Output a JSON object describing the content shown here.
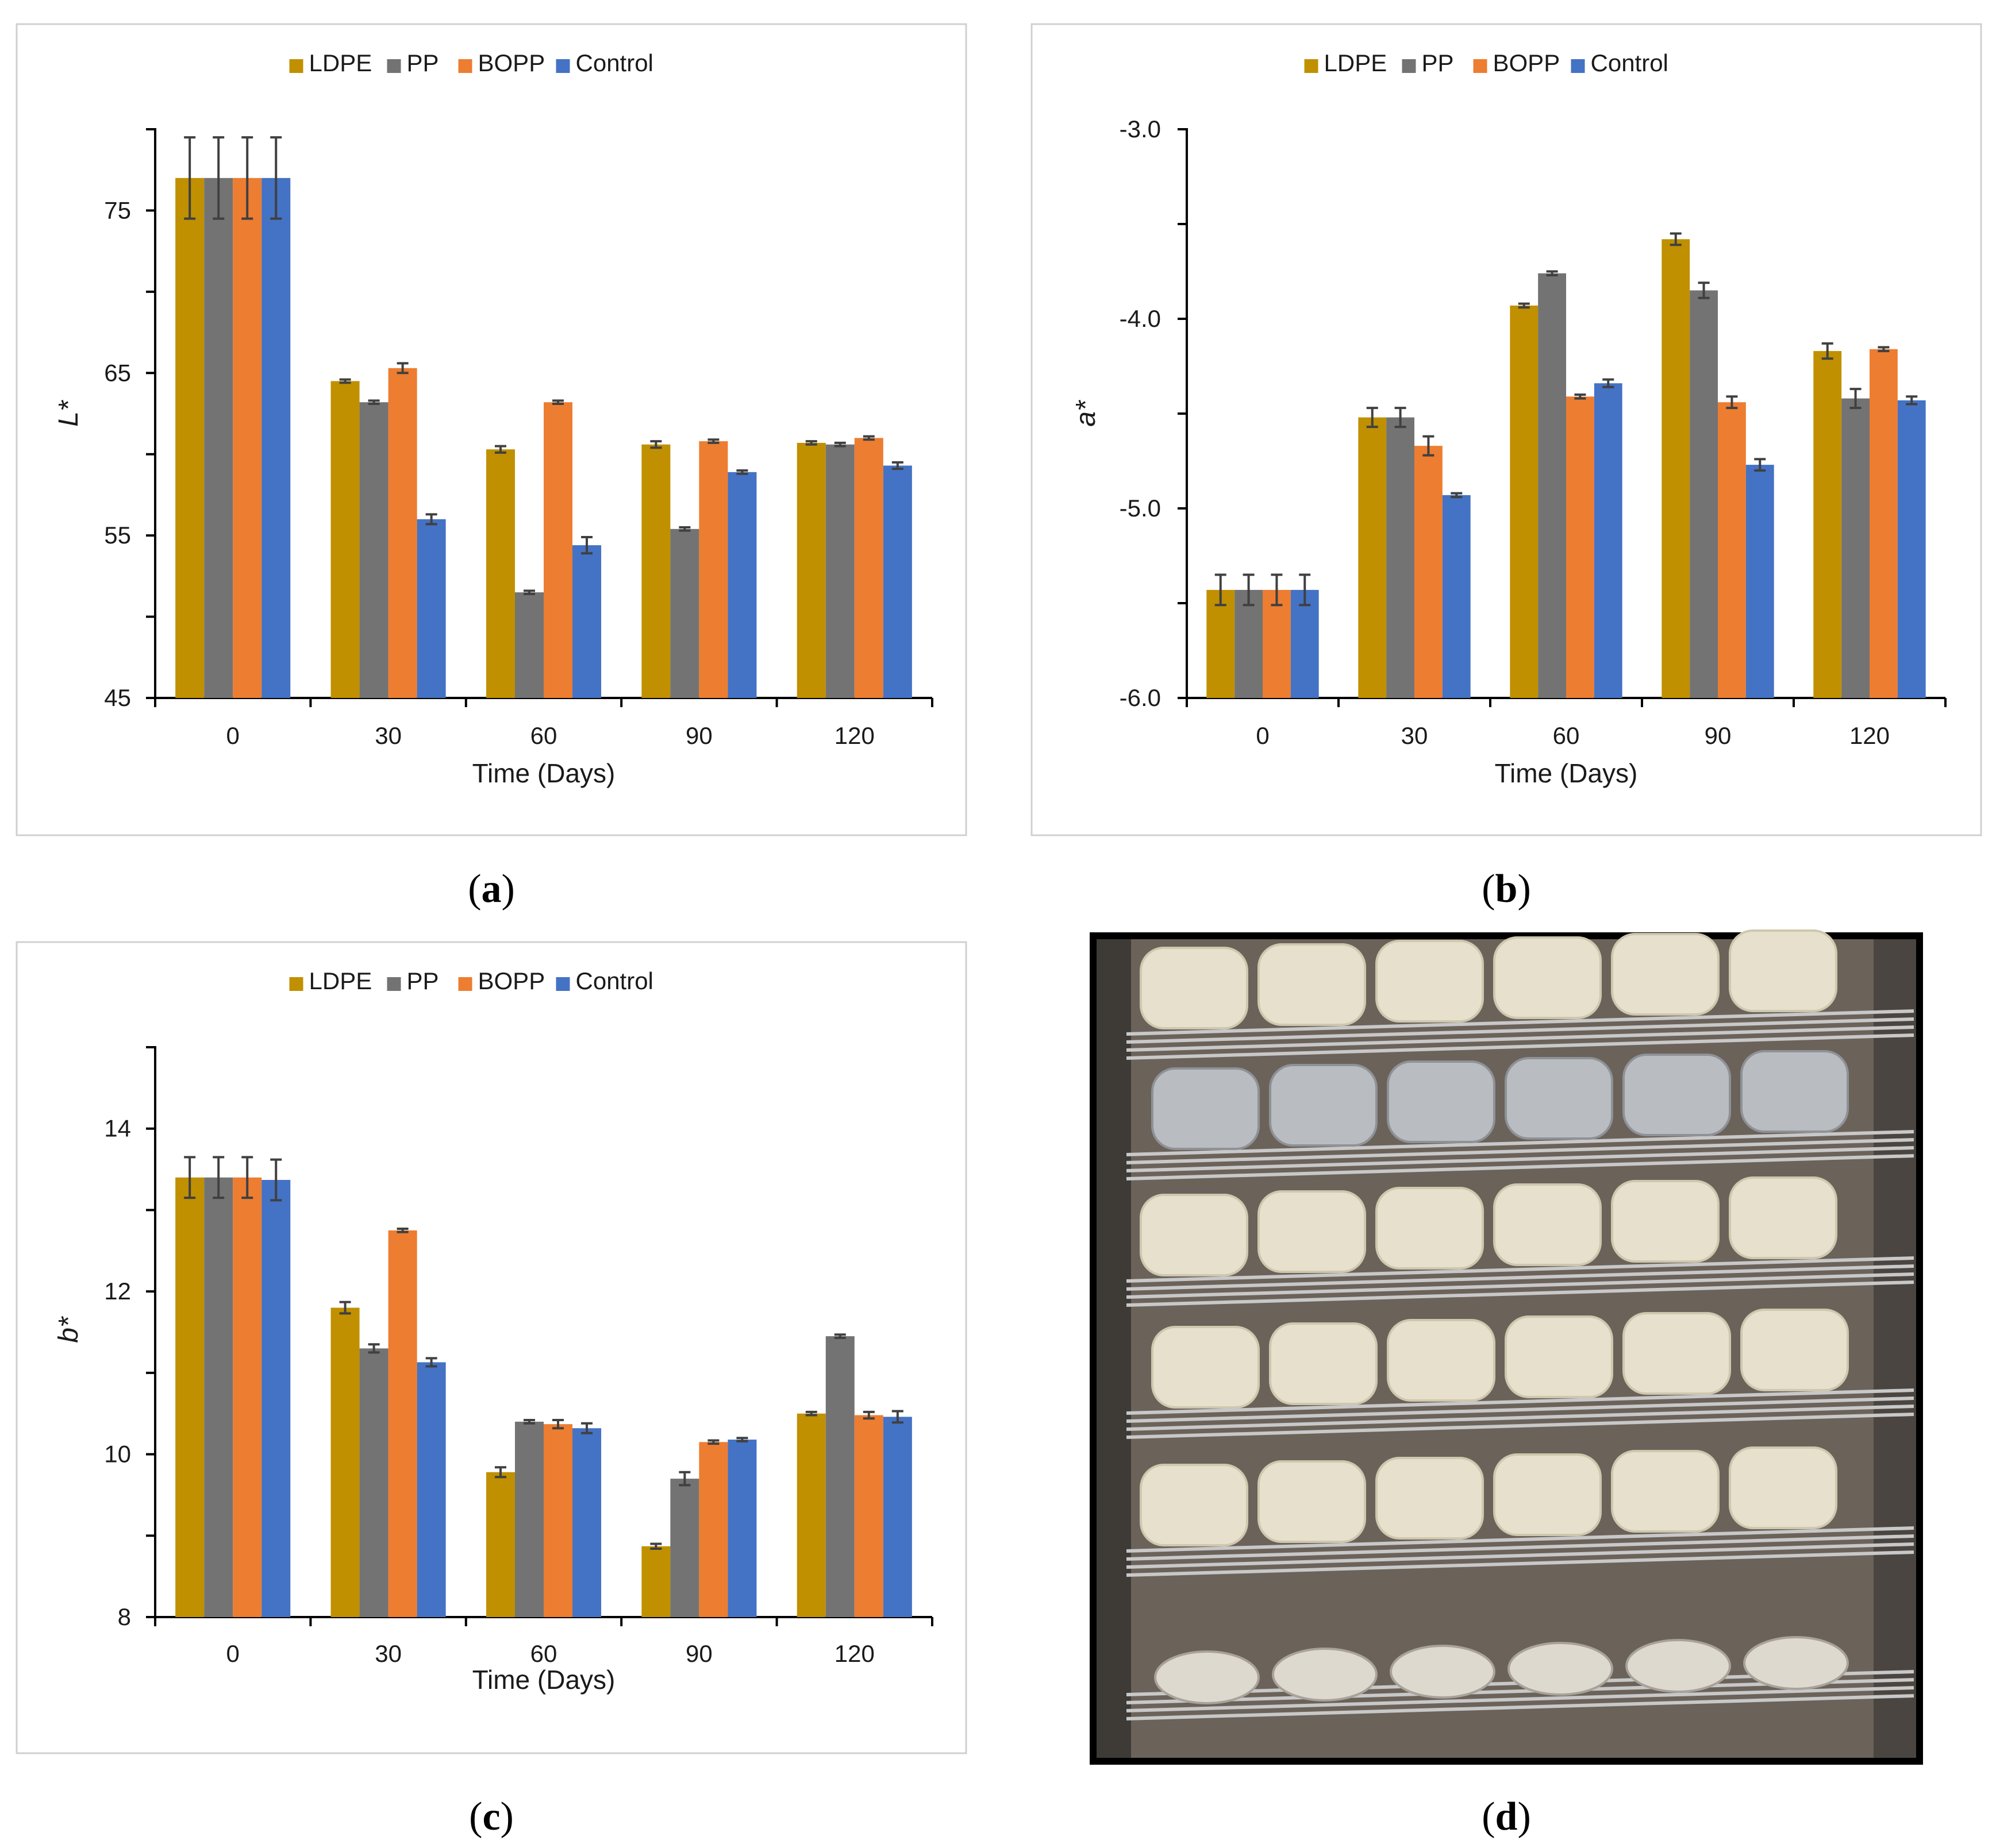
{
  "colors": {
    "LDPE": "#c09000",
    "PP": "#737373",
    "BOPP": "#ed7d31",
    "Control": "#4472c4"
  },
  "captions": {
    "a": [
      "(",
      "a",
      ")"
    ],
    "b": [
      "(",
      "b",
      ")"
    ],
    "c": [
      "(",
      "c",
      ")"
    ],
    "d": [
      "(",
      "d",
      ")"
    ]
  },
  "photo": {
    "description_icon": "photo-icon"
  },
  "chart_data": [
    {
      "id": "a",
      "type": "bar",
      "ylabel": "L*",
      "xlabel": "Time (Days)",
      "categories": [
        "0",
        "30",
        "60",
        "90",
        "120"
      ],
      "ylim": [
        45,
        80
      ],
      "yticks": [
        45,
        55,
        65,
        75
      ],
      "ytick_labels": [
        "45",
        "55",
        "65",
        "75"
      ],
      "legend": [
        "LDPE",
        "PP",
        "BOPP",
        "Control"
      ],
      "series": [
        {
          "name": "LDPE",
          "values": [
            77.0,
            64.5,
            60.3,
            60.6,
            60.7
          ],
          "errors": [
            2.5,
            0.1,
            0.2,
            0.2,
            0.1
          ]
        },
        {
          "name": "PP",
          "values": [
            77.0,
            63.2,
            51.5,
            55.4,
            60.6
          ],
          "errors": [
            2.5,
            0.1,
            0.1,
            0.1,
            0.1
          ]
        },
        {
          "name": "BOPP",
          "values": [
            77.0,
            65.3,
            63.2,
            60.8,
            61.0
          ],
          "errors": [
            2.5,
            0.3,
            0.1,
            0.1,
            0.1
          ]
        },
        {
          "name": "Control",
          "values": [
            77.0,
            56.0,
            54.4,
            58.9,
            59.3
          ],
          "errors": [
            2.5,
            0.3,
            0.5,
            0.1,
            0.2
          ]
        }
      ]
    },
    {
      "id": "b",
      "type": "bar",
      "ylabel": "a*",
      "xlabel": "Time (Days)",
      "categories": [
        "0",
        "30",
        "60",
        "90",
        "120"
      ],
      "ylim": [
        -6.0,
        -3.0
      ],
      "yticks": [
        -6.0,
        -5.0,
        -4.0,
        -3.0
      ],
      "ytick_labels": [
        "-6.0",
        "-5.0",
        "-4.0",
        "-3.0"
      ],
      "legend": [
        "LDPE",
        "PP",
        "BOPP",
        "Control"
      ],
      "series": [
        {
          "name": "LDPE",
          "values": [
            -5.43,
            -4.52,
            -3.93,
            -3.58,
            -4.17
          ],
          "errors": [
            0.08,
            0.05,
            0.01,
            0.03,
            0.04
          ]
        },
        {
          "name": "PP",
          "values": [
            -5.43,
            -4.52,
            -3.76,
            -3.85,
            -4.42
          ],
          "errors": [
            0.08,
            0.05,
            0.01,
            0.04,
            0.05
          ]
        },
        {
          "name": "BOPP",
          "values": [
            -5.43,
            -4.67,
            -4.41,
            -4.44,
            -4.16
          ],
          "errors": [
            0.08,
            0.05,
            0.01,
            0.03,
            0.01
          ]
        },
        {
          "name": "Control",
          "values": [
            -5.43,
            -4.93,
            -4.34,
            -4.77,
            -4.43
          ],
          "errors": [
            0.08,
            0.01,
            0.02,
            0.03,
            0.02
          ]
        }
      ]
    },
    {
      "id": "c",
      "type": "bar",
      "ylabel": "b*",
      "xlabel": "Time (Days)",
      "categories": [
        "0",
        "30",
        "60",
        "90",
        "120"
      ],
      "ylim": [
        8,
        15
      ],
      "yticks": [
        8,
        10,
        12,
        14
      ],
      "ytick_labels": [
        "8",
        "10",
        "12",
        "14"
      ],
      "legend": [
        "LDPE",
        "PP",
        "BOPP",
        "Control"
      ],
      "series": [
        {
          "name": "LDPE",
          "values": [
            13.4,
            11.8,
            9.78,
            8.87,
            10.5
          ],
          "errors": [
            0.25,
            0.07,
            0.06,
            0.03,
            0.02
          ]
        },
        {
          "name": "PP",
          "values": [
            13.4,
            11.3,
            10.4,
            9.7,
            11.45
          ],
          "errors": [
            0.25,
            0.05,
            0.02,
            0.08,
            0.02
          ]
        },
        {
          "name": "BOPP",
          "values": [
            13.4,
            12.75,
            10.37,
            10.15,
            10.48
          ],
          "errors": [
            0.25,
            0.02,
            0.05,
            0.02,
            0.04
          ]
        },
        {
          "name": "Control",
          "values": [
            13.37,
            11.13,
            10.32,
            10.18,
            10.46
          ],
          "errors": [
            0.25,
            0.05,
            0.06,
            0.02,
            0.07
          ]
        }
      ]
    }
  ]
}
